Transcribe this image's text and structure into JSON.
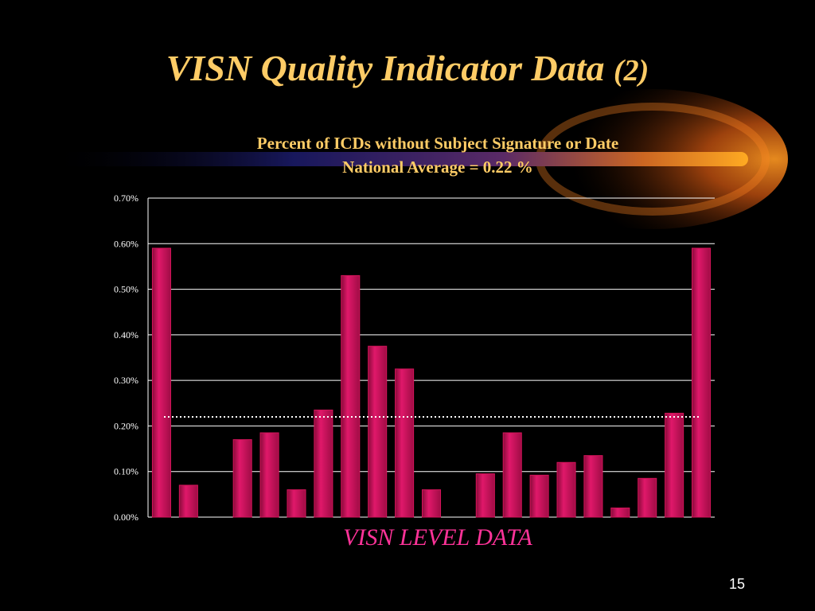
{
  "slide": {
    "title_main": "VISN Quality Indicator Data",
    "title_num": "(2)",
    "subtitle_line1": "Percent of ICDs without Subject Signature or Date",
    "subtitle_line2": "National Average = 0.22 %",
    "page_number": "15"
  },
  "colors": {
    "bar": "#d4145a",
    "title": "#ffcc66",
    "xlabel": "#ff3399"
  },
  "chart_data": {
    "type": "bar",
    "title": "Percent of ICDs without Subject Signature or Date",
    "subtitle": "National Average = 0.22 %",
    "xlabel": "VISN LEVEL DATA",
    "ylabel": "",
    "ylim": [
      0,
      0.7
    ],
    "ytick_labels": [
      "0.00%",
      "0.10%",
      "0.20%",
      "0.30%",
      "0.40%",
      "0.50%",
      "0.60%",
      "0.70%"
    ],
    "grid": true,
    "reference_line": {
      "value": 0.22,
      "style": "dotted"
    },
    "values": [
      0.59,
      0.07,
      0.0,
      0.17,
      0.185,
      0.06,
      0.235,
      0.53,
      0.375,
      0.325,
      0.06,
      0.0,
      0.095,
      0.185,
      0.092,
      0.12,
      0.135,
      0.02,
      0.085,
      0.228,
      0.59
    ]
  }
}
